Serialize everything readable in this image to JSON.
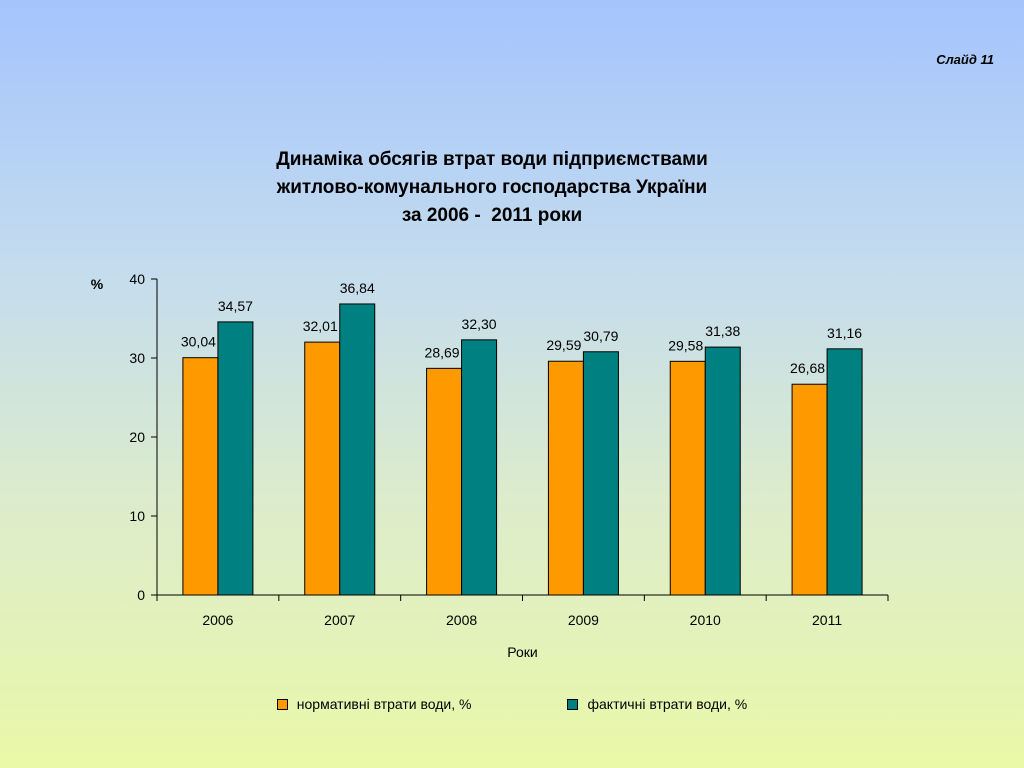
{
  "slide_label": "Слайд 11",
  "title_lines": [
    "Динаміка обсягів втрат води підприємствами",
    "житлово-комунального господарства України",
    "за 2006 -  2011 роки"
  ],
  "colors": {
    "normative": "#ff9900",
    "actual": "#008080"
  },
  "chart_data": {
    "type": "bar",
    "title": "Динаміка обсягів втрат води підприємствами житлово-комунального господарства України за 2006 -  2011 роки",
    "categories": [
      "2006",
      "2007",
      "2008",
      "2009",
      "2010",
      "2011"
    ],
    "series": [
      {
        "name": "нормативні втрати води, %",
        "values": [
          30.04,
          32.01,
          28.69,
          29.59,
          29.58,
          26.68
        ],
        "labels": [
          "30,04",
          "32,01",
          "28,69",
          "29,59",
          "29,58",
          "26,68"
        ]
      },
      {
        "name": "фактичні втрати води, %",
        "values": [
          34.57,
          36.84,
          32.3,
          30.79,
          31.38,
          31.16
        ],
        "labels": [
          "34,57",
          "36,84",
          "32,30",
          "30,79",
          "31,38",
          "31,16"
        ]
      }
    ],
    "xlabel": "Роки",
    "ylabel": "%",
    "ylim": [
      0,
      40
    ],
    "yticks": [
      "0",
      "10",
      "20",
      "30",
      "40"
    ],
    "grid": false,
    "legend_position": "bottom"
  }
}
